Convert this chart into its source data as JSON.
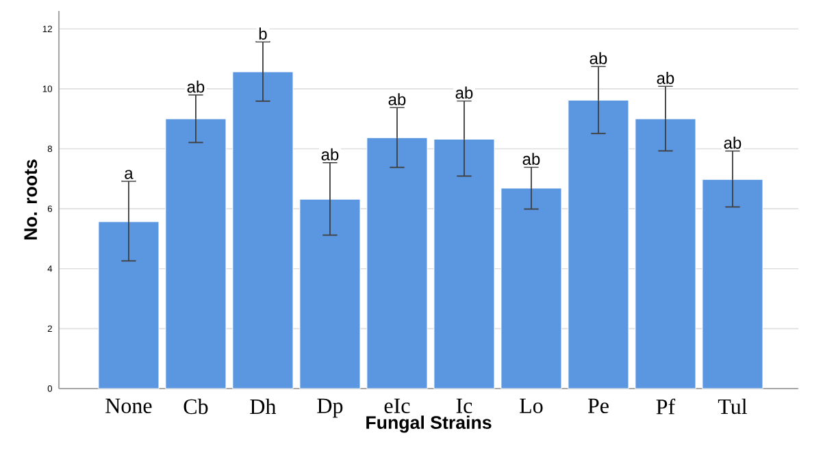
{
  "chart_data": {
    "type": "bar",
    "xlabel": "Fungal Strains",
    "ylabel": "No. roots",
    "categories": [
      "None",
      "Cb",
      "Dh",
      "Dp",
      "eIc",
      "Ic",
      "Lo",
      "Pe",
      "Pf",
      "Tul"
    ],
    "values": [
      5.57,
      9.0,
      10.57,
      6.32,
      8.37,
      8.32,
      6.69,
      9.62,
      9.0,
      6.98
    ],
    "errors": [
      [
        4.26,
        6.92
      ],
      [
        8.21,
        9.8
      ],
      [
        9.59,
        11.57
      ],
      [
        5.12,
        7.54
      ],
      [
        7.38,
        9.38
      ],
      [
        7.09,
        9.6
      ],
      [
        5.99,
        7.39
      ],
      [
        8.51,
        10.75
      ],
      [
        7.93,
        10.09
      ],
      [
        6.06,
        7.93
      ]
    ],
    "color": "#5b96e0",
    "ylim": [
      0,
      12.6
    ],
    "yticks": [
      0,
      2,
      4,
      6,
      8,
      10,
      12
    ],
    "grid": "y",
    "annotations": [
      {
        "text": "a",
        "x": "None",
        "y": 6.92
      },
      {
        "text": "ab",
        "x": "Cb",
        "y": 9.8
      },
      {
        "text": "b",
        "x": "Dh",
        "y": 11.57
      },
      {
        "text": "ab",
        "x": "Dp",
        "y": 7.54
      },
      {
        "text": "ab",
        "x": "eIc",
        "y": 9.38
      },
      {
        "text": "ab",
        "x": "Ic",
        "y": 9.6
      },
      {
        "text": "ab",
        "x": "Lo",
        "y": 7.39
      },
      {
        "text": "ab",
        "x": "Pe",
        "y": 10.75
      },
      {
        "text": "ab",
        "x": "Pf",
        "y": 10.09
      },
      {
        "text": "ab",
        "x": "Tul",
        "y": 7.93
      }
    ]
  }
}
